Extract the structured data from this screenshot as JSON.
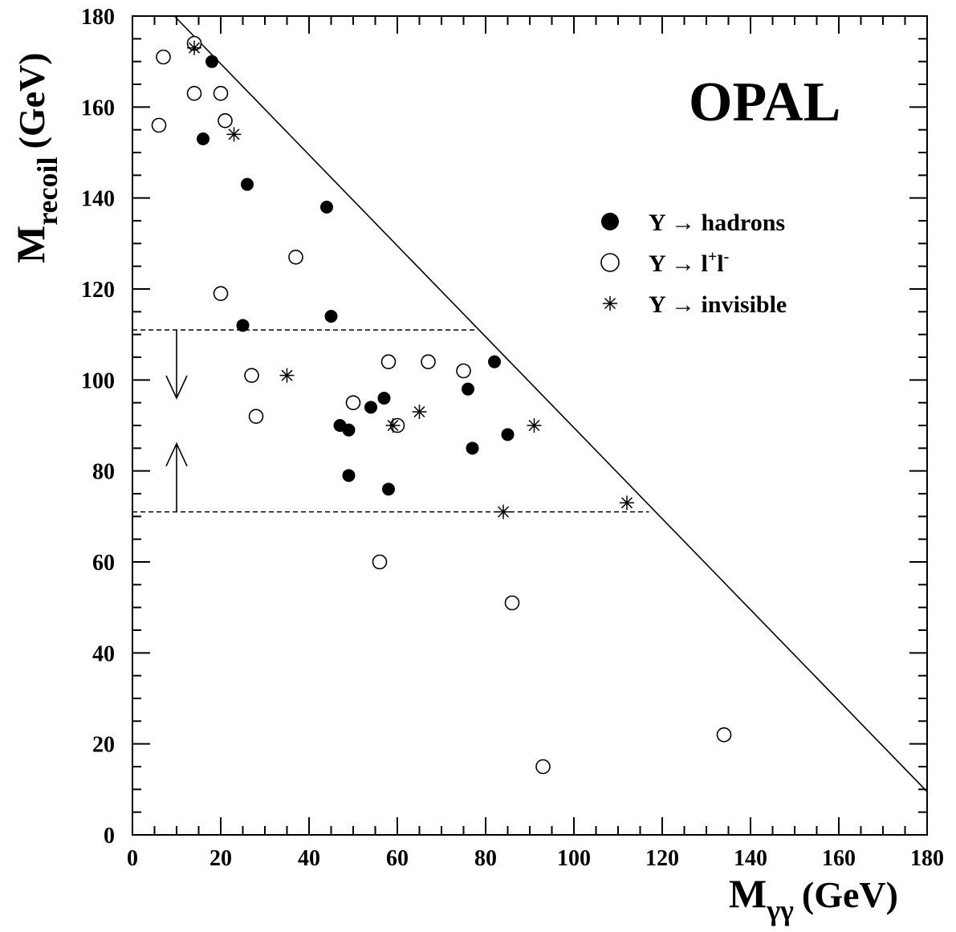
{
  "chart_data": {
    "type": "scatter",
    "title": "",
    "annotation": "OPAL",
    "xlabel": {
      "main": "M",
      "sub": "γγ",
      "unit": "(GeV)"
    },
    "ylabel": {
      "main": "M",
      "sub": "recoil",
      "unit": "(GeV)"
    },
    "xlim": [
      0,
      180
    ],
    "ylim": [
      0,
      180
    ],
    "x_ticks": [
      0,
      20,
      40,
      60,
      80,
      100,
      120,
      140,
      160,
      180
    ],
    "y_ticks": [
      0,
      20,
      40,
      60,
      80,
      100,
      120,
      140,
      160,
      180
    ],
    "x_minor_step": 5,
    "y_minor_step": 5,
    "grid": false,
    "legend_position": "top-right",
    "series": [
      {
        "name": "Y → hadrons",
        "legend": {
          "prefix": "Y",
          "arrow": "→",
          "text": "hadrons",
          "sup": "",
          "sup2": ""
        },
        "marker": "filled-circle",
        "points": [
          [
            18,
            170
          ],
          [
            16,
            153
          ],
          [
            26,
            143
          ],
          [
            44,
            138
          ],
          [
            25,
            112
          ],
          [
            45,
            114
          ],
          [
            82,
            104
          ],
          [
            76,
            98
          ],
          [
            57,
            96
          ],
          [
            54,
            94
          ],
          [
            47,
            90
          ],
          [
            49,
            89
          ],
          [
            85,
            88
          ],
          [
            77,
            85
          ],
          [
            49,
            79
          ],
          [
            58,
            76
          ]
        ]
      },
      {
        "name": "Y → l+l-",
        "legend": {
          "prefix": "Y",
          "arrow": "→",
          "text": "l",
          "sup": "+",
          "text2": "l",
          "sup2": "-"
        },
        "marker": "open-circle",
        "points": [
          [
            14,
            174
          ],
          [
            7,
            171
          ],
          [
            14,
            163
          ],
          [
            20,
            163
          ],
          [
            21,
            157
          ],
          [
            6,
            156
          ],
          [
            37,
            127
          ],
          [
            20,
            119
          ],
          [
            58,
            104
          ],
          [
            67,
            104
          ],
          [
            75,
            102
          ],
          [
            27,
            101
          ],
          [
            50,
            95
          ],
          [
            60,
            90
          ],
          [
            28,
            92
          ],
          [
            56,
            60
          ],
          [
            86,
            51
          ],
          [
            134,
            22
          ],
          [
            93,
            15
          ]
        ]
      },
      {
        "name": "Y → invisible",
        "legend": {
          "prefix": "Y",
          "arrow": "→",
          "text": "invisible",
          "sup": "",
          "sup2": ""
        },
        "marker": "star",
        "points": [
          [
            14,
            173
          ],
          [
            23,
            154
          ],
          [
            35,
            101
          ],
          [
            59,
            90
          ],
          [
            65,
            93
          ],
          [
            91,
            90
          ],
          [
            84,
            71
          ],
          [
            112,
            73
          ]
        ]
      }
    ],
    "kinematic_line": {
      "from": [
        9.5,
        180
      ],
      "to": [
        180,
        9.5
      ]
    },
    "cuts": {
      "upper": 111,
      "lower": 71,
      "x_start": 0,
      "upper_x_end": 78,
      "lower_x_end": 117,
      "arrow_x": 10,
      "upper_arrow_to": 96,
      "lower_arrow_to": 86
    }
  }
}
